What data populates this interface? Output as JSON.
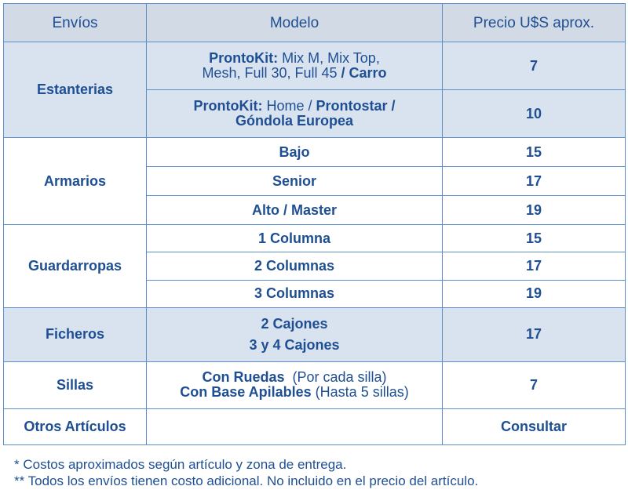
{
  "headers": {
    "envios": "Envíos",
    "modelo": "Modelo",
    "precio": "Precio U$S aprox."
  },
  "estanterias": {
    "category": "Estanterias",
    "row1": {
      "brand": "ProntoKit:",
      "models": " Mix M, Mix Top,",
      "models2": "Mesh, Full 30, Full 45",
      "extra": " / Carro",
      "price": "7"
    },
    "row2": {
      "brand": "ProntoKit:",
      "models": " Home / ",
      "extra": "Prontostar /",
      "extra2": "Góndola Europea",
      "price": "10"
    }
  },
  "armarios": {
    "category": "Armarios",
    "rows": [
      {
        "model": "Bajo",
        "price": "15"
      },
      {
        "model": "Senior",
        "price": "17"
      },
      {
        "model": "Alto / Master",
        "price": "19"
      }
    ]
  },
  "guardarropas": {
    "category": "Guardarropas",
    "rows": [
      {
        "model": "1 Columna",
        "price": "15"
      },
      {
        "model": "2 Columnas",
        "price": "17"
      },
      {
        "model": "3 Columnas",
        "price": "19"
      }
    ]
  },
  "ficheros": {
    "category": "Ficheros",
    "model1": "2 Cajones",
    "model2": "3 y 4 Cajones",
    "price": "17"
  },
  "sillas": {
    "category": "Sillas",
    "model1": "Con Ruedas",
    "note1": "  (Por cada silla)",
    "model2": "Con Base Apilables",
    "note2": " (Hasta 5 sillas)",
    "price": "7"
  },
  "otros": {
    "category": "Otros Artículos",
    "model": "",
    "price": "Consultar"
  },
  "notes": {
    "n1": "* Costos aproximados según artículo y zona de entrega.",
    "n2": "** Todos los envíos tienen costo adicional. No incluido en el precio del artículo."
  },
  "colors": {
    "text": "#1f4f93",
    "border": "#5c8ec8",
    "header_bg": "#d2dae6",
    "shaded_bg": "#d9e3ef"
  }
}
